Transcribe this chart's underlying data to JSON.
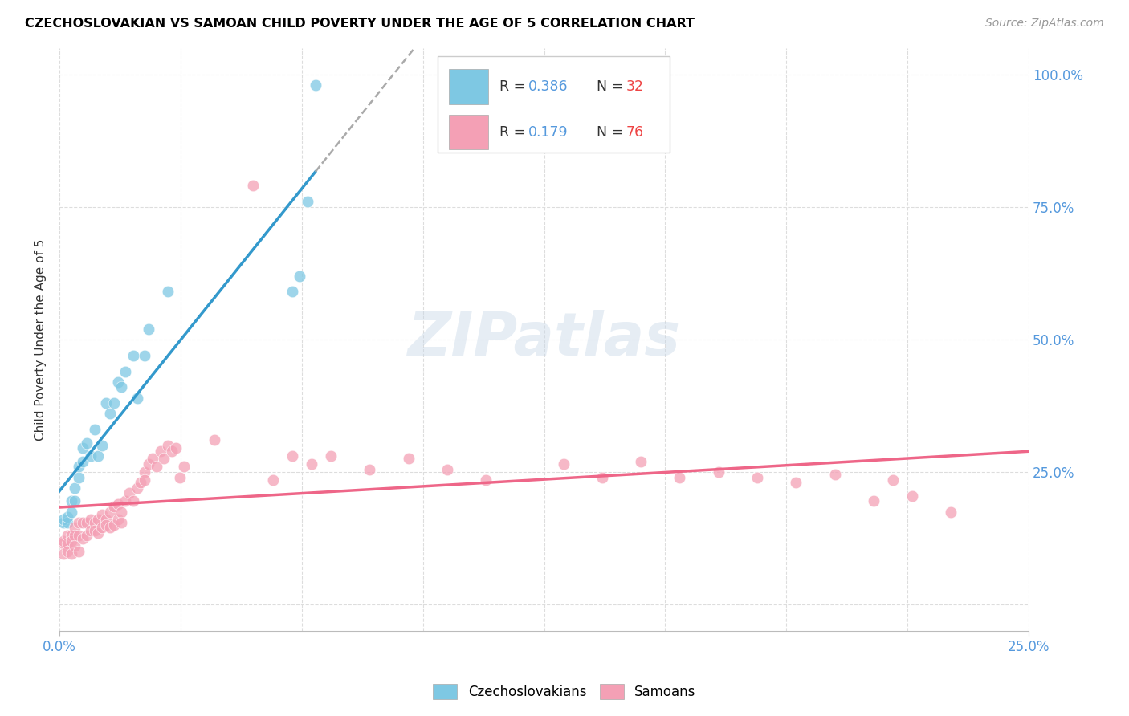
{
  "title": "CZECHOSLOVAKIAN VS SAMOAN CHILD POVERTY UNDER THE AGE OF 5 CORRELATION CHART",
  "source": "Source: ZipAtlas.com",
  "ylabel": "Child Poverty Under the Age of 5",
  "xlim": [
    0.0,
    0.25
  ],
  "ylim": [
    -0.05,
    1.05
  ],
  "yticks": [
    0.0,
    0.25,
    0.5,
    0.75,
    1.0
  ],
  "ytick_labels": [
    "",
    "25.0%",
    "50.0%",
    "75.0%",
    "100.0%"
  ],
  "legend_R1": "0.386",
  "legend_N1": "32",
  "legend_R2": "0.179",
  "legend_N2": "76",
  "color_czech": "#7ec8e3",
  "color_samoan": "#f4a0b5",
  "color_czech_line": "#3399cc",
  "color_samoan_line": "#ee6688",
  "color_dashed_line": "#aaaaaa",
  "watermark": "ZIPatlas",
  "czech_x": [
    0.001,
    0.001,
    0.002,
    0.002,
    0.003,
    0.003,
    0.004,
    0.004,
    0.005,
    0.005,
    0.006,
    0.006,
    0.007,
    0.008,
    0.009,
    0.01,
    0.011,
    0.012,
    0.013,
    0.014,
    0.015,
    0.016,
    0.017,
    0.019,
    0.02,
    0.022,
    0.023,
    0.028,
    0.06,
    0.062,
    0.064,
    0.066
  ],
  "czech_y": [
    0.155,
    0.16,
    0.155,
    0.165,
    0.195,
    0.175,
    0.195,
    0.22,
    0.24,
    0.26,
    0.27,
    0.295,
    0.305,
    0.28,
    0.33,
    0.28,
    0.3,
    0.38,
    0.36,
    0.38,
    0.42,
    0.41,
    0.44,
    0.47,
    0.39,
    0.47,
    0.52,
    0.59,
    0.59,
    0.62,
    0.76,
    0.98
  ],
  "samoan_x": [
    0.001,
    0.001,
    0.001,
    0.002,
    0.002,
    0.002,
    0.003,
    0.003,
    0.003,
    0.004,
    0.004,
    0.004,
    0.005,
    0.005,
    0.005,
    0.006,
    0.006,
    0.007,
    0.007,
    0.008,
    0.008,
    0.009,
    0.009,
    0.01,
    0.01,
    0.011,
    0.011,
    0.012,
    0.012,
    0.013,
    0.013,
    0.014,
    0.014,
    0.015,
    0.015,
    0.016,
    0.016,
    0.017,
    0.018,
    0.019,
    0.02,
    0.021,
    0.022,
    0.022,
    0.023,
    0.024,
    0.025,
    0.026,
    0.027,
    0.028,
    0.029,
    0.03,
    0.031,
    0.032,
    0.04,
    0.05,
    0.055,
    0.06,
    0.065,
    0.07,
    0.08,
    0.09,
    0.1,
    0.11,
    0.13,
    0.14,
    0.15,
    0.16,
    0.17,
    0.18,
    0.19,
    0.2,
    0.21,
    0.215,
    0.22,
    0.23
  ],
  "samoan_y": [
    0.115,
    0.12,
    0.095,
    0.13,
    0.115,
    0.1,
    0.13,
    0.12,
    0.095,
    0.145,
    0.13,
    0.11,
    0.155,
    0.13,
    0.1,
    0.155,
    0.125,
    0.155,
    0.13,
    0.16,
    0.14,
    0.155,
    0.14,
    0.16,
    0.135,
    0.17,
    0.145,
    0.16,
    0.15,
    0.175,
    0.145,
    0.185,
    0.15,
    0.19,
    0.16,
    0.175,
    0.155,
    0.195,
    0.21,
    0.195,
    0.22,
    0.23,
    0.25,
    0.235,
    0.265,
    0.275,
    0.26,
    0.29,
    0.275,
    0.3,
    0.29,
    0.295,
    0.24,
    0.26,
    0.31,
    0.79,
    0.235,
    0.28,
    0.265,
    0.28,
    0.255,
    0.275,
    0.255,
    0.235,
    0.265,
    0.24,
    0.27,
    0.24,
    0.25,
    0.24,
    0.23,
    0.245,
    0.195,
    0.235,
    0.205,
    0.175
  ]
}
